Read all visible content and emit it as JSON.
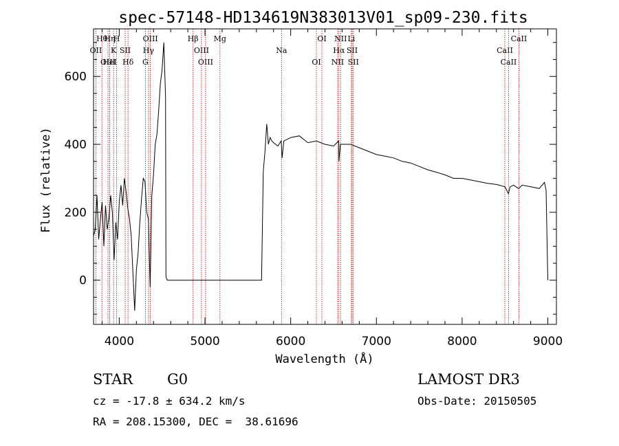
{
  "chart_data": {
    "type": "line",
    "title": "spec-57148-HD134619N383013V01_sp09-230.fits",
    "xlabel": "Wavelength (Å)",
    "ylabel": "Flux (relative)",
    "xlim": [
      3700,
      9100
    ],
    "ylim": [
      -130,
      740
    ],
    "xticks": [
      4000,
      5000,
      6000,
      7000,
      8000,
      9000
    ],
    "yticks": [
      0,
      200,
      400,
      600
    ],
    "grid": false,
    "series": [
      {
        "x": [
          3700,
          3720,
          3740,
          3760,
          3780,
          3800,
          3820,
          3840,
          3860,
          3880,
          3900,
          3920,
          3940,
          3960,
          3980,
          4000,
          4020,
          4040,
          4060,
          4080,
          4100,
          4120,
          4140,
          4160,
          4180,
          4200,
          4220,
          4240,
          4260,
          4280,
          4300,
          4320,
          4340,
          4360,
          4380,
          4400,
          4420,
          4440,
          4460,
          4480,
          4500,
          4520,
          4540,
          4545,
          4560,
          4600,
          4800,
          5000,
          5200,
          5400,
          5600,
          5660,
          5680,
          5700,
          5720,
          5740,
          5760,
          5780,
          5800,
          5850,
          5890,
          5900,
          5920,
          6000,
          6100,
          6200,
          6300,
          6400,
          6500,
          6560,
          6563,
          6580,
          6700,
          6800,
          6900,
          7000,
          7100,
          7200,
          7300,
          7400,
          7500,
          7600,
          7700,
          7800,
          7900,
          8000,
          8100,
          8200,
          8300,
          8400,
          8500,
          8540,
          8560,
          8600,
          8660,
          8700,
          8800,
          8900,
          8960,
          8980,
          9000
        ],
        "y": [
          130,
          150,
          250,
          120,
          180,
          230,
          100,
          220,
          150,
          180,
          250,
          200,
          60,
          170,
          120,
          230,
          280,
          220,
          300,
          260,
          210,
          180,
          130,
          20,
          -90,
          30,
          80,
          170,
          240,
          300,
          290,
          200,
          180,
          -20,
          250,
          310,
          400,
          430,
          500,
          580,
          620,
          700,
          540,
          10,
          0,
          0,
          0,
          0,
          0,
          0,
          0,
          0,
          320,
          380,
          460,
          400,
          420,
          410,
          405,
          395,
          410,
          360,
          410,
          420,
          425,
          405,
          410,
          400,
          395,
          410,
          350,
          400,
          400,
          390,
          380,
          370,
          365,
          360,
          350,
          345,
          335,
          325,
          318,
          310,
          300,
          300,
          295,
          290,
          285,
          282,
          275,
          255,
          275,
          280,
          270,
          280,
          275,
          270,
          288,
          265,
          0
        ]
      }
    ],
    "lines": [
      {
        "name": "Hθ",
        "x": 3798
      },
      {
        "name": "OII",
        "x": 3727
      },
      {
        "name": "OIII",
        "x": 3869
      },
      {
        "name": "Hη",
        "x": 3889
      },
      {
        "name": "K",
        "x": 3934
      },
      {
        "name": "HeI",
        "x": 3889
      },
      {
        "name": "H",
        "x": 3969
      },
      {
        "name": "SII",
        "x": 4069
      },
      {
        "name": "Hδ",
        "x": 4102
      },
      {
        "name": "OIII",
        "x": 4363
      },
      {
        "name": "Hγ",
        "x": 4341
      },
      {
        "name": "G",
        "x": 4305
      },
      {
        "name": "Hβ",
        "x": 4861
      },
      {
        "name": "OIII",
        "x": 4959
      },
      {
        "name": "OIII",
        "x": 5007
      },
      {
        "name": "Mg",
        "x": 5175
      },
      {
        "name": "Na",
        "x": 5893
      },
      {
        "name": "OI",
        "x": 6300
      },
      {
        "name": "OI",
        "x": 6364
      },
      {
        "name": "Hα",
        "x": 6563
      },
      {
        "name": "NII",
        "x": 6548
      },
      {
        "name": "NII",
        "x": 6583
      },
      {
        "name": "SII",
        "x": 6717
      },
      {
        "name": "SII",
        "x": 6731
      },
      {
        "name": "Li",
        "x": 6708
      },
      {
        "name": "CaII",
        "x": 8498
      },
      {
        "name": "CaII",
        "x": 8542
      },
      {
        "name": "CaII",
        "x": 8662
      }
    ]
  },
  "info": {
    "object_class": "STAR",
    "subclass": "G0",
    "survey": "LAMOST DR3",
    "cz": "cz = -17.8 ± 634.2 km/s",
    "obs_date": "Obs-Date: 20150505",
    "coords": "RA = 208.15300, DEC =  38.61696"
  }
}
